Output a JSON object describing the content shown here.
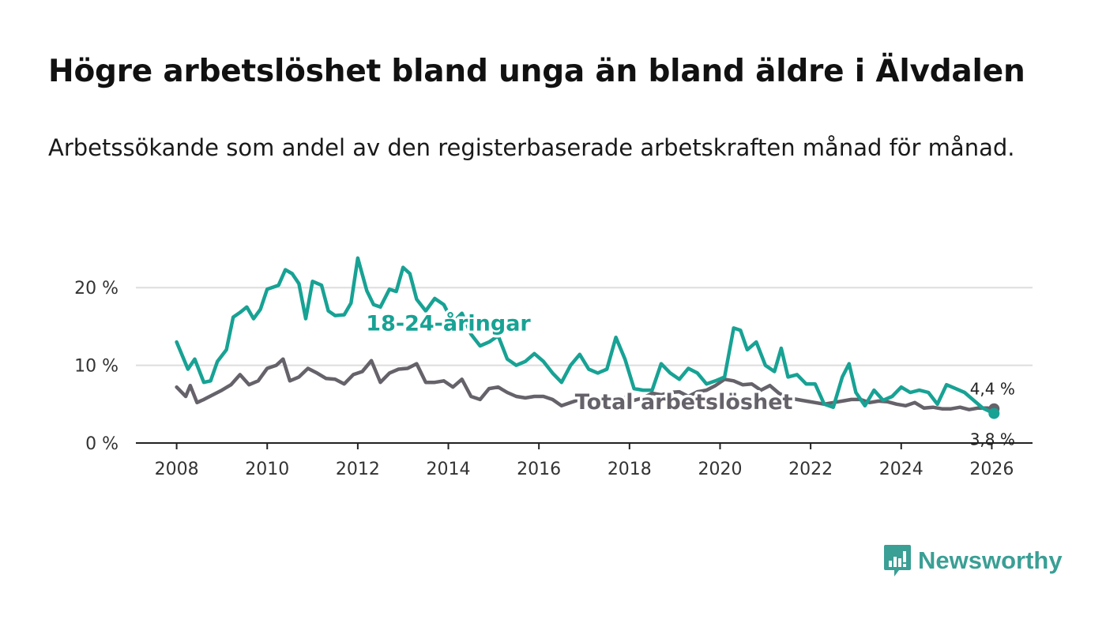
{
  "title": "Högre arbetslöshet bland unga än bland äldre i Älvdalen",
  "subtitle": "Arbetssökande som andel av den registerbaserade arbetskraften månad för månad.",
  "brand": "Newsworthy",
  "colors": {
    "youth": "#17a294",
    "total": "#66626a",
    "grid": "#dddddd",
    "axis": "#222222",
    "brand": "#3a9f95"
  },
  "chart_data": {
    "type": "line",
    "title": "",
    "xlabel": "",
    "ylabel": "",
    "xlim": [
      2007.1,
      2026.9
    ],
    "ylim": [
      0,
      25
    ],
    "y_ticks": [
      0,
      10,
      20
    ],
    "y_tick_labels": [
      "0 %",
      "10 %",
      "20 %"
    ],
    "x_ticks": [
      2008,
      2010,
      2012,
      2014,
      2016,
      2018,
      2020,
      2022,
      2024,
      2026
    ],
    "x_tick_labels": [
      "2008",
      "2010",
      "2012",
      "2014",
      "2016",
      "2018",
      "2020",
      "2022",
      "2024",
      "2026"
    ],
    "grid": true,
    "series": [
      {
        "name": "18-24-åringar",
        "color": "#17a294",
        "label_at": [
          2014.0,
          15.4
        ],
        "end_label": "3,8 %",
        "x": [
          2008.0,
          2008.25,
          2008.4,
          2008.6,
          2008.75,
          2008.9,
          2009.1,
          2009.25,
          2009.4,
          2009.55,
          2009.7,
          2009.85,
          2010.0,
          2010.1,
          2010.25,
          2010.4,
          2010.55,
          2010.7,
          2010.85,
          2011.0,
          2011.2,
          2011.35,
          2011.5,
          2011.7,
          2011.85,
          2012.0,
          2012.2,
          2012.35,
          2012.5,
          2012.7,
          2012.85,
          2013.0,
          2013.15,
          2013.3,
          2013.5,
          2013.7,
          2013.9,
          2014.1,
          2014.3,
          2014.5,
          2014.7,
          2014.9,
          2015.1,
          2015.3,
          2015.5,
          2015.7,
          2015.9,
          2016.1,
          2016.3,
          2016.5,
          2016.7,
          2016.9,
          2017.1,
          2017.3,
          2017.5,
          2017.7,
          2017.9,
          2018.1,
          2018.3,
          2018.5,
          2018.7,
          2018.9,
          2019.1,
          2019.3,
          2019.5,
          2019.7,
          2019.9,
          2020.1,
          2020.3,
          2020.45,
          2020.6,
          2020.8,
          2021.0,
          2021.2,
          2021.35,
          2021.5,
          2021.7,
          2021.9,
          2022.1,
          2022.3,
          2022.5,
          2022.7,
          2022.85,
          2023.0,
          2023.2,
          2023.4,
          2023.6,
          2023.8,
          2024.0,
          2024.2,
          2024.4,
          2024.6,
          2024.8,
          2025.0,
          2025.2,
          2025.4,
          2025.6,
          2025.8,
          2026.05
        ],
        "values": [
          13.0,
          9.5,
          10.8,
          7.8,
          8.0,
          10.5,
          12.0,
          16.2,
          16.8,
          17.5,
          16.0,
          17.2,
          19.8,
          20.0,
          20.3,
          22.3,
          21.8,
          20.5,
          16.0,
          20.8,
          20.3,
          17.0,
          16.4,
          16.5,
          18.0,
          23.8,
          19.6,
          17.8,
          17.5,
          19.8,
          19.5,
          22.6,
          21.8,
          18.5,
          17.0,
          18.6,
          17.8,
          15.5,
          16.7,
          14.0,
          12.5,
          13.0,
          13.8,
          10.8,
          10.0,
          10.5,
          11.5,
          10.5,
          9.0,
          7.8,
          10.0,
          11.4,
          9.5,
          9.0,
          9.5,
          13.6,
          10.8,
          7.0,
          6.8,
          6.8,
          10.2,
          9.0,
          8.2,
          9.6,
          9.0,
          7.6,
          8.0,
          8.5,
          14.8,
          14.5,
          12.0,
          13.0,
          10.0,
          9.2,
          12.2,
          8.5,
          8.8,
          7.6,
          7.6,
          5.0,
          4.6,
          8.5,
          10.2,
          6.5,
          4.8,
          6.8,
          5.5,
          6.0,
          7.2,
          6.5,
          6.8,
          6.5,
          5.0,
          7.5,
          7.0,
          6.5,
          5.5,
          4.5,
          3.8
        ]
      },
      {
        "name": "Total arbetslöshet",
        "color": "#66626a",
        "label_at": [
          2019.2,
          5.3
        ],
        "end_label": "4,4 %",
        "x": [
          2008.0,
          2008.2,
          2008.3,
          2008.45,
          2008.6,
          2008.8,
          2009.0,
          2009.2,
          2009.4,
          2009.6,
          2009.8,
          2010.0,
          2010.2,
          2010.35,
          2010.5,
          2010.7,
          2010.9,
          2011.1,
          2011.3,
          2011.5,
          2011.7,
          2011.9,
          2012.1,
          2012.3,
          2012.5,
          2012.7,
          2012.9,
          2013.1,
          2013.3,
          2013.5,
          2013.7,
          2013.9,
          2014.1,
          2014.3,
          2014.5,
          2014.7,
          2014.9,
          2015.1,
          2015.3,
          2015.5,
          2015.7,
          2015.9,
          2016.1,
          2016.3,
          2016.5,
          2016.7,
          2016.9,
          2017.1,
          2017.3,
          2017.5,
          2017.7,
          2017.9,
          2018.1,
          2018.3,
          2018.5,
          2018.7,
          2018.9,
          2019.1,
          2019.3,
          2019.5,
          2019.7,
          2019.9,
          2020.1,
          2020.3,
          2020.5,
          2020.7,
          2020.9,
          2021.1,
          2021.3,
          2021.5,
          2021.7,
          2021.9,
          2022.1,
          2022.3,
          2022.5,
          2022.7,
          2022.9,
          2023.1,
          2023.3,
          2023.5,
          2023.7,
          2023.9,
          2024.1,
          2024.3,
          2024.5,
          2024.7,
          2024.9,
          2025.1,
          2025.3,
          2025.5,
          2025.7,
          2025.9,
          2026.05
        ],
        "values": [
          7.2,
          6.0,
          7.4,
          5.2,
          5.6,
          6.2,
          6.8,
          7.5,
          8.8,
          7.5,
          8.0,
          9.6,
          10.0,
          10.8,
          8.0,
          8.5,
          9.6,
          9.0,
          8.3,
          8.2,
          7.6,
          8.8,
          9.2,
          10.6,
          7.8,
          9.0,
          9.5,
          9.6,
          10.2,
          7.8,
          7.8,
          8.0,
          7.2,
          8.2,
          6.0,
          5.6,
          7.0,
          7.2,
          6.5,
          6.0,
          5.8,
          6.0,
          6.0,
          5.6,
          4.8,
          5.2,
          5.6,
          6.2,
          5.6,
          5.3,
          5.6,
          5.8,
          5.5,
          5.8,
          6.4,
          6.2,
          6.5,
          6.6,
          6.0,
          6.6,
          6.8,
          7.4,
          8.2,
          8.0,
          7.5,
          7.6,
          6.8,
          7.4,
          6.4,
          5.8,
          5.6,
          5.4,
          5.2,
          5.0,
          5.2,
          5.4,
          5.6,
          5.6,
          5.2,
          5.4,
          5.3,
          5.0,
          4.8,
          5.2,
          4.5,
          4.6,
          4.4,
          4.4,
          4.6,
          4.3,
          4.5,
          4.5,
          4.4
        ]
      }
    ]
  }
}
